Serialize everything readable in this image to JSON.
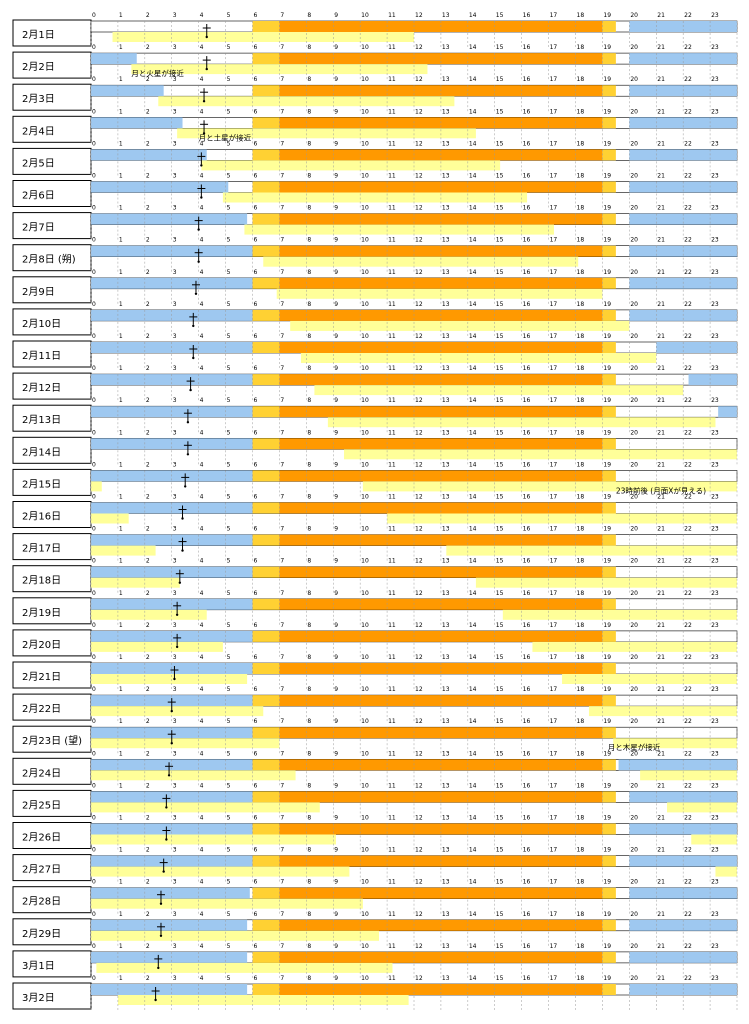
{
  "chart_data": {
    "type": "timeline",
    "hour_ticks": [
      "0",
      "1",
      "2",
      "3",
      "4",
      "5",
      "6",
      "7",
      "8",
      "9",
      "10",
      "11",
      "12",
      "13",
      "14",
      "15",
      "16",
      "17",
      "18",
      "19",
      "20",
      "21",
      "22",
      "23"
    ],
    "colors": {
      "night_blue": "#9ec8f0",
      "twilight_yellow": "#ffd133",
      "day_orange": "#ff9900",
      "moon_yellow": "#ffff99",
      "label_border": "#000000",
      "grid_dash": "#999999"
    },
    "rows": [
      {
        "label": "2月1日",
        "note": "",
        "night_am": 0.0,
        "night_pm": 20.0,
        "moon_rise": null,
        "moon_set": 12.0,
        "moon_start": 0.8,
        "mark": 4.3
      },
      {
        "label": "2月2日",
        "note": "",
        "night_am": 1.7,
        "night_pm": 20.0,
        "moon_rise": 1.5,
        "moon_set": 12.5,
        "mark": 4.3
      },
      {
        "label": "2月3日",
        "note": "",
        "night_am": 2.7,
        "night_pm": 20.0,
        "moon_rise": 2.5,
        "moon_set": 13.5,
        "mark": 4.2
      },
      {
        "label": "2月4日",
        "note": "",
        "night_am": 3.4,
        "night_pm": 20.0,
        "moon_rise": 3.2,
        "moon_set": 14.3,
        "mark": 4.2
      },
      {
        "label": "2月5日",
        "note": "",
        "night_am": 4.3,
        "night_pm": 20.0,
        "moon_rise": 4.1,
        "moon_set": 15.2,
        "mark": 4.1
      },
      {
        "label": "2月6日",
        "note": "",
        "night_am": 5.1,
        "night_pm": 20.0,
        "moon_rise": 4.9,
        "moon_set": 16.2,
        "mark": 4.1
      },
      {
        "label": "2月7日",
        "note": "",
        "night_am": 5.8,
        "night_pm": 20.0,
        "moon_rise": 5.7,
        "moon_set": 17.2,
        "mark": 4.0
      },
      {
        "label": "2月8日",
        "note": "(朔)",
        "night_am": 6.0,
        "night_pm": 20.0,
        "moon_rise": 6.4,
        "moon_set": 18.1,
        "mark": 4.0
      },
      {
        "label": "2月9日",
        "note": "",
        "night_am": 6.0,
        "night_pm": 20.0,
        "moon_rise": 6.9,
        "moon_set": 19.0,
        "mark": 3.9
      },
      {
        "label": "2月10日",
        "note": "",
        "night_am": 6.0,
        "night_pm": 20.0,
        "moon_rise": 7.4,
        "moon_set": 20.0,
        "mark": 3.8
      },
      {
        "label": "2月11日",
        "note": "",
        "night_am": 6.0,
        "night_pm": 21.0,
        "moon_rise": 7.8,
        "moon_set": 21.0,
        "mark": 3.8
      },
      {
        "label": "2月12日",
        "note": "",
        "night_am": 6.0,
        "night_pm": 22.2,
        "moon_rise": 8.3,
        "moon_set": 22.0,
        "mark": 3.7
      },
      {
        "label": "2月13日",
        "note": "",
        "night_am": 6.0,
        "night_pm": 23.3,
        "moon_rise": 8.8,
        "moon_set": 23.2,
        "mark": 3.6
      },
      {
        "label": "2月14日",
        "note": "",
        "night_am": 6.0,
        "night_pm": 24.0,
        "moon_rise": 9.4,
        "moon_set": 24.0,
        "mark": 3.6
      },
      {
        "label": "2月15日",
        "note": "",
        "night_am": 6.0,
        "night_pm": 24.0,
        "moon_rise": 10.1,
        "moon_set": 0.4,
        "mark": 3.5
      },
      {
        "label": "2月16日",
        "note": "",
        "night_am": 6.0,
        "night_pm": 24.0,
        "moon_rise": 11.0,
        "moon_set": 1.4,
        "mark": 3.4
      },
      {
        "label": "2月17日",
        "note": "",
        "night_am": 6.0,
        "night_pm": 24.0,
        "moon_rise": 13.2,
        "moon_set": 2.4,
        "mark": 3.4
      },
      {
        "label": "2月18日",
        "note": "",
        "night_am": 6.0,
        "night_pm": 24.0,
        "moon_rise": 14.3,
        "moon_set": 3.3,
        "mark": 3.3
      },
      {
        "label": "2月19日",
        "note": "",
        "night_am": 6.0,
        "night_pm": 24.0,
        "moon_rise": 15.3,
        "moon_set": 4.3,
        "mark": 3.2
      },
      {
        "label": "2月20日",
        "note": "",
        "night_am": 6.0,
        "night_pm": 24.0,
        "moon_rise": 16.4,
        "moon_set": 4.9,
        "mark": 3.2
      },
      {
        "label": "2月21日",
        "note": "",
        "night_am": 6.0,
        "night_pm": 24.0,
        "moon_rise": 17.5,
        "moon_set": 5.8,
        "mark": 3.1
      },
      {
        "label": "2月22日",
        "note": "",
        "night_am": 6.0,
        "night_pm": 24.0,
        "moon_rise": 18.5,
        "moon_set": 6.4,
        "mark": 3.0
      },
      {
        "label": "2月23日",
        "note": "(望)",
        "night_am": 6.0,
        "night_pm": 24.0,
        "moon_rise": 19.4,
        "moon_set": 7.0,
        "mark": 3.0
      },
      {
        "label": "2月24日",
        "note": "",
        "night_am": 6.0,
        "night_pm": 19.6,
        "moon_rise": 20.4,
        "moon_set": 7.6,
        "mark": 2.9
      },
      {
        "label": "2月25日",
        "note": "",
        "night_am": 6.0,
        "night_pm": 20.0,
        "moon_rise": 21.4,
        "moon_set": 8.5,
        "mark": 2.8
      },
      {
        "label": "2月26日",
        "note": "",
        "night_am": 6.0,
        "night_pm": 20.0,
        "moon_rise": 22.3,
        "moon_set": 9.1,
        "mark": 2.8
      },
      {
        "label": "2月27日",
        "note": "",
        "night_am": 6.0,
        "night_pm": 20.0,
        "moon_rise": 23.2,
        "moon_set": 9.6,
        "mark": 2.7
      },
      {
        "label": "2月28日",
        "note": "",
        "night_am": 5.9,
        "night_pm": 20.0,
        "moon_rise": 24.0,
        "moon_set": 10.1,
        "mark": 2.6
      },
      {
        "label": "2月29日",
        "note": "",
        "night_am": 5.8,
        "night_pm": 20.0,
        "moon_rise": null,
        "moon_set": 10.7,
        "mark": 2.6
      },
      {
        "label": "3月1日",
        "note": "",
        "night_am": 5.8,
        "night_pm": 20.0,
        "moon_rise": 0.2,
        "moon_set": 11.2,
        "mark": 2.5
      },
      {
        "label": "3月2日",
        "note": "",
        "night_am": 5.8,
        "night_pm": 20.0,
        "moon_rise": 1.0,
        "moon_set": 11.8,
        "mark": 2.4
      }
    ],
    "annotations": [
      {
        "row": 1,
        "text": "月と火星が接近",
        "hour": 1.5
      },
      {
        "row": 3,
        "text": "月と土星が接近",
        "hour": 4.0
      },
      {
        "row": 14,
        "text": "23時前後 (月面Xが見える)",
        "hour": 19.5
      },
      {
        "row": 22,
        "text": "月と木星が接近",
        "hour": 19.2
      }
    ]
  }
}
